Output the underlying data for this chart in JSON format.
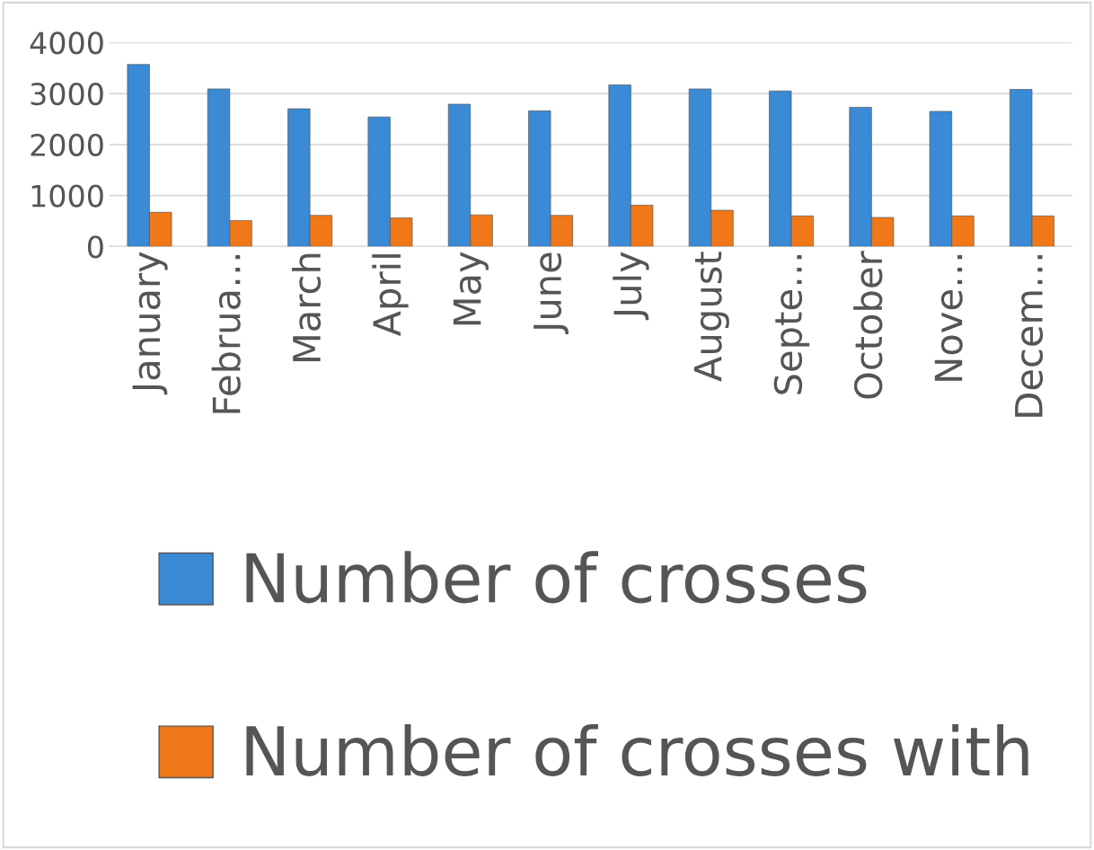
{
  "chart_data": {
    "type": "bar",
    "categories": [
      "January",
      "Februa…",
      "March",
      "April",
      "May",
      "June",
      "July",
      "August",
      "Septe…",
      "October",
      "Nove…",
      "Decem…"
    ],
    "series": [
      {
        "name": "Number of crosses",
        "color": "#3a8ad6",
        "values": [
          3570,
          3090,
          2700,
          2540,
          2790,
          2660,
          3170,
          3090,
          3050,
          2730,
          2650,
          3080
        ]
      },
      {
        "name": "Number of crosses with",
        "color": "#f07818",
        "values": [
          670,
          510,
          610,
          560,
          620,
          610,
          810,
          710,
          600,
          570,
          600,
          600
        ]
      }
    ],
    "ylim": [
      0,
      4000
    ],
    "yticks": [
      0,
      1000,
      2000,
      3000,
      4000
    ],
    "grid": "y",
    "legend": "bottom"
  }
}
